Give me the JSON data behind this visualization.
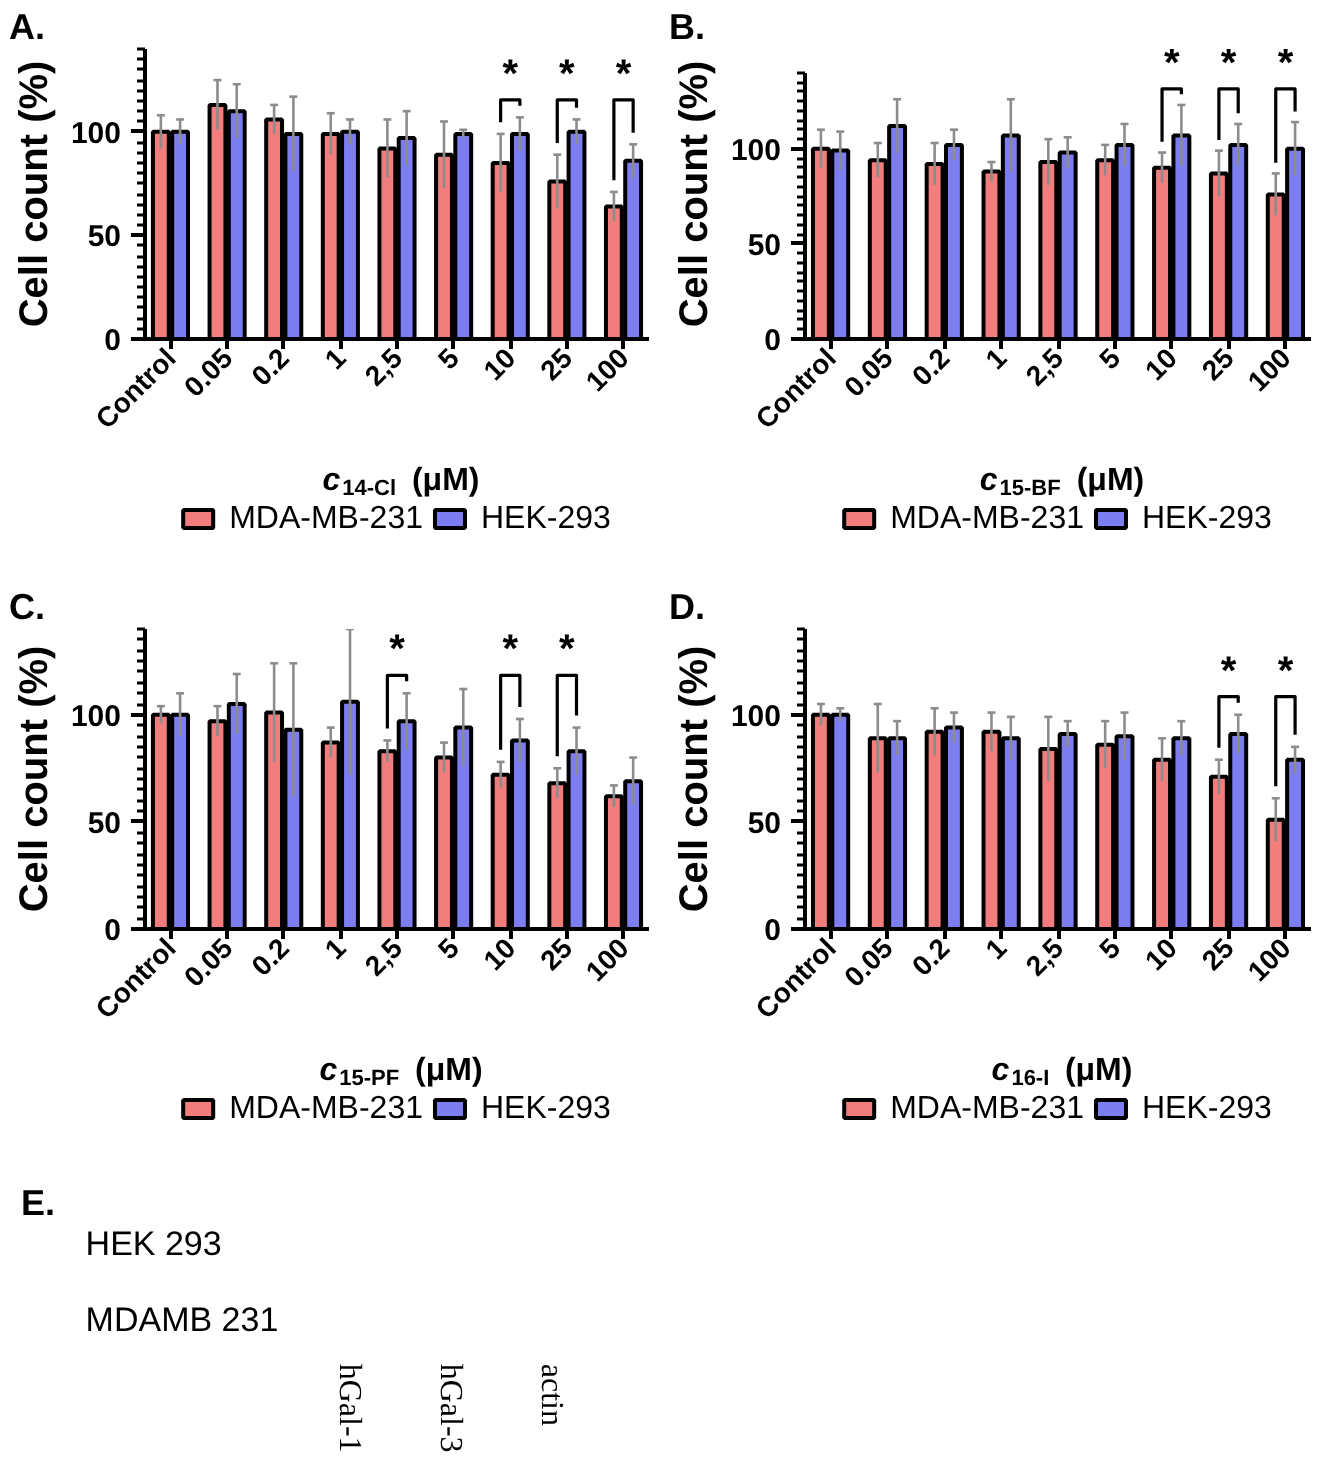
{
  "chart_data": [
    {
      "type": "bar",
      "title": "A.",
      "xlabel": "c$_{14-Cl}$ (μM)",
      "ylabel": "Cell count (%)",
      "categories": [
        "Control",
        "0.05",
        "0.2",
        "1",
        "2,5",
        "5",
        "10",
        "25",
        "100"
      ],
      "series": [
        {
          "name": "MDA-MB-231",
          "color": "#f27d7d",
          "values": [
            100,
            113,
            106,
            99,
            92,
            89,
            85,
            76,
            64
          ],
          "errors": [
            8,
            12,
            7,
            10,
            14,
            16,
            14,
            13,
            7
          ]
        },
        {
          "name": "HEK-293",
          "color": "#7d7df2",
          "values": [
            100,
            110,
            99,
            100,
            97,
            99,
            99,
            100,
            86
          ],
          "errors": [
            6,
            13,
            18,
            6,
            13,
            2,
            8,
            6,
            8
          ]
        }
      ],
      "ylim": [
        0,
        140
      ],
      "yticks": [
        0,
        {
          "value": 5,
          "label": null
        },
        {
          "value": 10,
          "label": null
        },
        {
          "value": 15,
          "label": null
        },
        {
          "value": 20,
          "label": null
        },
        {
          "value": 25,
          "label": null
        },
        {
          "value": 30,
          "label": null
        },
        {
          "value": 35,
          "label": null
        },
        {
          "value": 40,
          "label": null
        },
        {
          "value": 45,
          "label": null
        },
        50,
        {
          "value": 55,
          "label": null
        },
        {
          "value": 60,
          "label": null
        },
        {
          "value": 65,
          "label": null
        },
        {
          "value": 70,
          "label": null
        },
        {
          "value": 75,
          "label": null
        },
        {
          "value": 80,
          "label": null
        },
        {
          "value": 85,
          "label": null
        },
        {
          "value": 90,
          "label": null
        },
        {
          "value": 95,
          "label": null
        },
        100,
        {
          "value": 105,
          "label": null
        },
        {
          "value": 110,
          "label": null
        },
        {
          "value": 115,
          "label": null
        },
        {
          "value": 120,
          "label": null
        },
        {
          "value": 125,
          "label": null
        },
        {
          "value": 130,
          "label": null
        },
        {
          "value": 135,
          "label": null
        },
        {
          "value": 140,
          "label": null
        }
      ],
      "legend": "bottom",
      "annotations": [
        "*",
        "*",
        "*"
      ]
    },
    {
      "type": "bar",
      "title": "B.",
      "xlabel": "c$_{15-BF}$ (μM)",
      "ylabel": "Cell count (%)",
      "categories": [
        "Control",
        "0.05",
        "0.2",
        "1",
        "2,5",
        "5",
        "10",
        "25",
        "100"
      ],
      "series": [
        {
          "name": "MDA-MB-231",
          "color": "#f27d7d",
          "values": [
            100,
            94,
            92,
            88,
            93,
            94,
            90,
            87,
            76
          ],
          "errors": [
            10,
            9,
            11,
            5,
            12,
            8,
            8,
            12,
            11
          ]
        },
        {
          "name": "HEK-293",
          "color": "#7d7df2",
          "values": [
            99,
            112,
            102,
            107,
            98,
            102,
            107,
            102,
            100
          ],
          "errors": [
            10,
            14,
            8,
            19,
            8,
            11,
            16,
            11,
            14
          ]
        }
      ],
      "ylim": [
        0,
        140
      ],
      "yticks": [
        0,
        {
          "value": 5,
          "label": null
        },
        {
          "value": 10,
          "label": null
        },
        {
          "value": 15,
          "label": null
        },
        {
          "value": 20,
          "label": null
        },
        {
          "value": 25,
          "label": null
        },
        {
          "value": 30,
          "label": null
        },
        {
          "value": 35,
          "label": null
        },
        {
          "value": 40,
          "label": null
        },
        {
          "value": 45,
          "label": null
        },
        50,
        {
          "value": 55,
          "label": null
        },
        {
          "value": 60,
          "label": null
        },
        {
          "value": 65,
          "label": null
        },
        {
          "value": 70,
          "label": null
        },
        {
          "value": 75,
          "label": null
        },
        {
          "value": 80,
          "label": null
        },
        {
          "value": 85,
          "label": null
        },
        {
          "value": 90,
          "label": null
        },
        {
          "value": 95,
          "label": null
        },
        100,
        {
          "value": 105,
          "label": null
        },
        {
          "value": 110,
          "label": null
        },
        {
          "value": 115,
          "label": null
        },
        {
          "value": 120,
          "label": null
        },
        {
          "value": 125,
          "label": null
        },
        {
          "value": 130,
          "label": null
        },
        {
          "value": 135,
          "label": null
        },
        {
          "value": 140,
          "label": null
        }
      ],
      "legend": "bottom",
      "annotations": [
        "*",
        "*",
        "*"
      ]
    },
    {
      "type": "bar",
      "title": "C.",
      "xlabel": "c$_{15-PF}$ (μM)",
      "ylabel": "Cell count (%)",
      "categories": [
        "Control",
        "0.05",
        "0.2",
        "1",
        "2,5",
        "5",
        "10",
        "25",
        "100"
      ],
      "series": [
        {
          "name": "MDA-MB-231",
          "color": "#f27d7d",
          "values": [
            100,
            97,
            101,
            87,
            83,
            80,
            72,
            68,
            62
          ],
          "errors": [
            4,
            7,
            23,
            7,
            5,
            7,
            6,
            7,
            5
          ]
        },
        {
          "name": "HEK-293",
          "color": "#7d7df2",
          "values": [
            100,
            105,
            93,
            106,
            97,
            94,
            88,
            83,
            69
          ],
          "errors": [
            10,
            14,
            31,
            34,
            13,
            18,
            10,
            11,
            11
          ]
        }
      ],
      "ylim": [
        0,
        140
      ],
      "yticks": [
        0,
        {
          "value": 5,
          "label": null
        },
        {
          "value": 10,
          "label": null
        },
        {
          "value": 15,
          "label": null
        },
        {
          "value": 20,
          "label": null
        },
        {
          "value": 25,
          "label": null
        },
        {
          "value": 30,
          "label": null
        },
        {
          "value": 35,
          "label": null
        },
        {
          "value": 40,
          "label": null
        },
        {
          "value": 45,
          "label": null
        },
        50,
        {
          "value": 55,
          "label": null
        },
        {
          "value": 60,
          "label": null
        },
        {
          "value": 65,
          "label": null
        },
        {
          "value": 70,
          "label": null
        },
        {
          "value": 75,
          "label": null
        },
        {
          "value": 80,
          "label": null
        },
        {
          "value": 85,
          "label": null
        },
        {
          "value": 90,
          "label": null
        },
        {
          "value": 95,
          "label": null
        },
        100,
        {
          "value": 105,
          "label": null
        },
        {
          "value": 110,
          "label": null
        },
        {
          "value": 115,
          "label": null
        },
        {
          "value": 120,
          "label": null
        },
        {
          "value": 125,
          "label": null
        },
        {
          "value": 130,
          "label": null
        },
        {
          "value": 135,
          "label": null
        },
        {
          "value": 140,
          "label": null
        }
      ],
      "legend": "bottom",
      "annotations": [
        "*",
        "*",
        "*"
      ]
    },
    {
      "type": "bar",
      "title": "D.",
      "xlabel": "c$_{16-I}$ (μM)",
      "ylabel": "Cell count (%)",
      "categories": [
        "Control",
        "0.05",
        "0.2",
        "1",
        "2,5",
        "5",
        "10",
        "25",
        "100"
      ],
      "series": [
        {
          "name": "MDA-MB-231",
          "color": "#f27d7d",
          "values": [
            100,
            89,
            92,
            92,
            84,
            86,
            79,
            71,
            51
          ],
          "errors": [
            5,
            16,
            11,
            9,
            15,
            11,
            10,
            8,
            10
          ]
        },
        {
          "name": "HEK-293",
          "color": "#7d7df2",
          "values": [
            100,
            89,
            94,
            89,
            91,
            90,
            89,
            91,
            79
          ],
          "errors": [
            3,
            8,
            7,
            10,
            6,
            11,
            8,
            9,
            6
          ]
        }
      ],
      "ylim": [
        0,
        140
      ],
      "yticks": [
        0,
        {
          "value": 5,
          "label": null
        },
        {
          "value": 10,
          "label": null
        },
        {
          "value": 15,
          "label": null
        },
        {
          "value": 20,
          "label": null
        },
        {
          "value": 25,
          "label": null
        },
        {
          "value": 30,
          "label": null
        },
        {
          "value": 35,
          "label": null
        },
        {
          "value": 40,
          "label": null
        },
        {
          "value": 45,
          "label": null
        },
        50,
        {
          "value": 55,
          "label": null
        },
        {
          "value": 60,
          "label": null
        },
        {
          "value": 65,
          "label": null
        },
        {
          "value": 70,
          "label": null
        },
        {
          "value": 75,
          "label": null
        },
        {
          "value": 80,
          "label": null
        },
        {
          "value": 85,
          "label": null
        },
        {
          "value": 90,
          "label": null
        },
        {
          "value": 95,
          "label": null
        },
        100,
        {
          "value": 105,
          "label": null
        },
        {
          "value": 110,
          "label": null
        },
        {
          "value": 115,
          "label": null
        },
        {
          "value": 120,
          "label": null
        },
        {
          "value": 125,
          "label": null
        },
        {
          "value": 130,
          "label": null
        },
        {
          "value": 135,
          "label": null
        },
        {
          "value": 140,
          "label": null
        }
      ],
      "legend": "bottom",
      "annotations": [
        "*",
        "*"
      ]
    },
    {
      "type": "other",
      "title": "E.",
      "annotations": [
        "HEK 293",
        "MDAMB 231",
        "hGal-1",
        "hGal-3",
        "actin"
      ]
    }
  ]
}
